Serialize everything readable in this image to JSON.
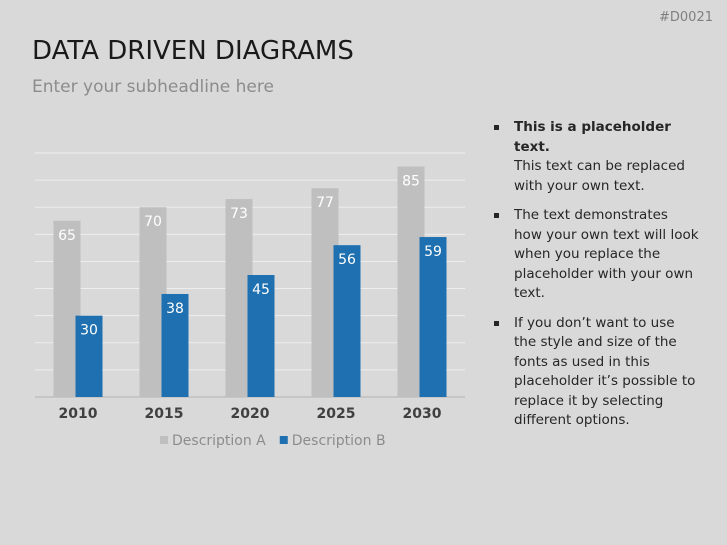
{
  "slide": {
    "code": "#D0021",
    "title": "DATA DRIVEN DIAGRAMS",
    "subtitle": "Enter your subheadline here",
    "bullets": [
      {
        "bold": "This is a placeholder text.",
        "text": "This text can be replaced with your own text."
      },
      {
        "text": "The text demonstrates how your own text will look when you replace the placeholder with your own text."
      },
      {
        "text": "If you don’t want to use the style and size of the fonts as used in this placeholder it’s possible to replace it by selecting different options."
      }
    ]
  },
  "chart_data": {
    "type": "bar",
    "categories": [
      "2010",
      "2015",
      "2020",
      "2025",
      "2030"
    ],
    "series": [
      {
        "name": "Description A",
        "color": "#bfbfbf",
        "values": [
          65,
          70,
          73,
          77,
          85
        ]
      },
      {
        "name": "Description B",
        "color": "#1f70b0",
        "values": [
          30,
          38,
          45,
          56,
          59
        ]
      }
    ],
    "ylim": [
      0,
      90
    ],
    "yticks": [
      0,
      10,
      20,
      30,
      40,
      50,
      60,
      70,
      80,
      90
    ],
    "grid": true,
    "legend": "bottom"
  }
}
